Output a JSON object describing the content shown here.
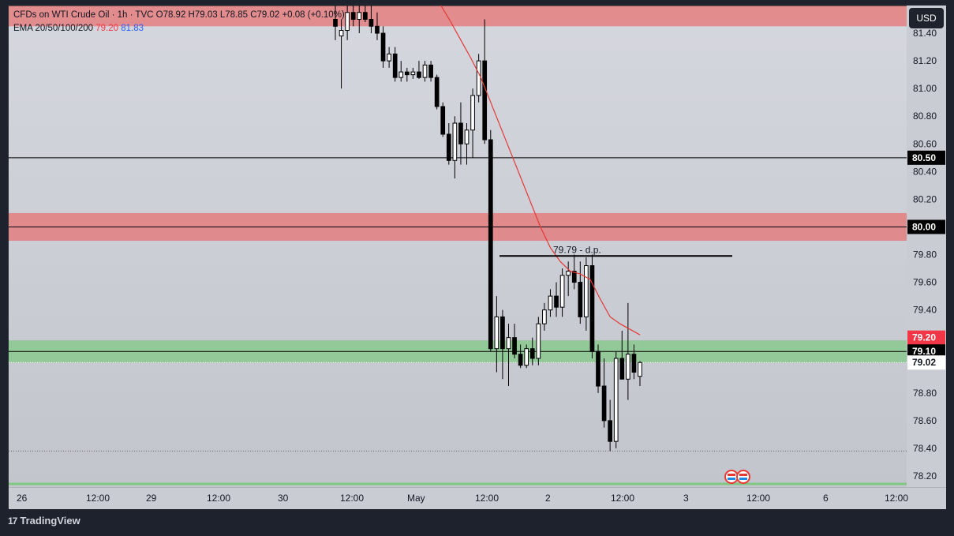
{
  "legend": {
    "symbol_line": "CFDs on WTI Crude Oil · 1h · TVC  O78.92  H79.03  L78.85  C79.02  +0.08 (+0.10%)",
    "ema_label": "EMA 20/50/100/200",
    "ema_value_1": "79.20",
    "ema_value_2": "81.83"
  },
  "currency": "USD",
  "branding": "TradingView",
  "colors": {
    "red_zone": "#e57373",
    "green_zone": "#81c784",
    "ema_line": "#e53935",
    "price_badge": "#ffffff",
    "ema_badge": "#f23645"
  },
  "chart_data": {
    "type": "candlestick",
    "ylim": [
      78.12,
      81.6
    ],
    "y_ticks": [
      "81.40",
      "81.20",
      "81.00",
      "80.80",
      "80.60",
      "80.40",
      "80.20",
      "79.80",
      "79.60",
      "79.40",
      "78.80",
      "78.60",
      "78.40",
      "78.20"
    ],
    "x_ticks": [
      "26",
      "12:00",
      "29",
      "12:00",
      "30",
      "12:00",
      "May",
      "12:00",
      "2",
      "12:00",
      "3",
      "12:00",
      "6",
      "12:00"
    ],
    "zones": [
      {
        "type": "resistance",
        "low": 81.45,
        "high": 81.6
      },
      {
        "type": "resistance",
        "low": 79.9,
        "high": 80.1
      },
      {
        "type": "support",
        "low": 79.02,
        "high": 79.18
      }
    ],
    "levels": [
      81.6,
      80.5,
      80.0,
      79.1
    ],
    "annotation": {
      "text": "79.79 - d.p.",
      "value": 79.79
    },
    "price_badges": [
      {
        "value": "80.50",
        "style": "level"
      },
      {
        "value": "80.00",
        "style": "level"
      },
      {
        "value": "79.20",
        "style": "ema"
      },
      {
        "value": "79.10",
        "style": "level"
      },
      {
        "value": "79.02",
        "style": "last"
      }
    ],
    "candles": [
      {
        "o": 81.5,
        "h": 81.6,
        "l": 81.35,
        "c": 81.45
      },
      {
        "o": 81.38,
        "h": 81.5,
        "l": 81.0,
        "c": 81.42
      },
      {
        "o": 81.42,
        "h": 81.6,
        "l": 81.35,
        "c": 81.55
      },
      {
        "o": 81.55,
        "h": 81.6,
        "l": 81.45,
        "c": 81.5
      },
      {
        "o": 81.5,
        "h": 81.6,
        "l": 81.4,
        "c": 81.55
      },
      {
        "o": 81.55,
        "h": 81.6,
        "l": 81.48,
        "c": 81.5
      },
      {
        "o": 81.5,
        "h": 81.6,
        "l": 81.4,
        "c": 81.45
      },
      {
        "o": 81.45,
        "h": 81.55,
        "l": 81.35,
        "c": 81.4
      },
      {
        "o": 81.4,
        "h": 81.45,
        "l": 81.15,
        "c": 81.2
      },
      {
        "o": 81.2,
        "h": 81.3,
        "l": 81.15,
        "c": 81.25
      },
      {
        "o": 81.25,
        "h": 81.3,
        "l": 81.05,
        "c": 81.08
      },
      {
        "o": 81.08,
        "h": 81.2,
        "l": 81.05,
        "c": 81.12
      },
      {
        "o": 81.12,
        "h": 81.15,
        "l": 81.05,
        "c": 81.1
      },
      {
        "o": 81.1,
        "h": 81.15,
        "l": 81.07,
        "c": 81.12
      },
      {
        "o": 81.12,
        "h": 81.2,
        "l": 81.07,
        "c": 81.08
      },
      {
        "o": 81.08,
        "h": 81.2,
        "l": 81.05,
        "c": 81.17
      },
      {
        "o": 81.17,
        "h": 81.2,
        "l": 81.05,
        "c": 81.08
      },
      {
        "o": 81.08,
        "h": 81.1,
        "l": 80.85,
        "c": 80.87
      },
      {
        "o": 80.87,
        "h": 80.9,
        "l": 80.65,
        "c": 80.67
      },
      {
        "o": 80.67,
        "h": 80.75,
        "l": 80.45,
        "c": 80.48
      },
      {
        "o": 80.48,
        "h": 80.8,
        "l": 80.35,
        "c": 80.75
      },
      {
        "o": 80.75,
        "h": 80.9,
        "l": 80.45,
        "c": 80.6
      },
      {
        "o": 80.6,
        "h": 80.75,
        "l": 80.45,
        "c": 80.7
      },
      {
        "o": 80.7,
        "h": 81.0,
        "l": 80.5,
        "c": 80.95
      },
      {
        "o": 80.95,
        "h": 81.25,
        "l": 80.9,
        "c": 81.2
      },
      {
        "o": 81.2,
        "h": 81.5,
        "l": 80.6,
        "c": 80.63
      },
      {
        "o": 80.63,
        "h": 80.7,
        "l": 79.1,
        "c": 79.12
      },
      {
        "o": 79.12,
        "h": 79.5,
        "l": 78.95,
        "c": 79.35
      },
      {
        "o": 79.35,
        "h": 79.4,
        "l": 78.9,
        "c": 79.12
      },
      {
        "o": 79.12,
        "h": 79.3,
        "l": 78.85,
        "c": 79.2
      },
      {
        "o": 79.2,
        "h": 79.3,
        "l": 79.05,
        "c": 79.08
      },
      {
        "o": 79.08,
        "h": 79.15,
        "l": 78.98,
        "c": 79.0
      },
      {
        "o": 79.0,
        "h": 79.15,
        "l": 78.98,
        "c": 79.12
      },
      {
        "o": 79.12,
        "h": 79.2,
        "l": 79.0,
        "c": 79.05
      },
      {
        "o": 79.05,
        "h": 79.35,
        "l": 79.0,
        "c": 79.3
      },
      {
        "o": 79.3,
        "h": 79.45,
        "l": 79.25,
        "c": 79.4
      },
      {
        "o": 79.4,
        "h": 79.55,
        "l": 79.35,
        "c": 79.5
      },
      {
        "o": 79.5,
        "h": 79.6,
        "l": 79.35,
        "c": 79.42
      },
      {
        "o": 79.42,
        "h": 79.7,
        "l": 79.35,
        "c": 79.65
      },
      {
        "o": 79.65,
        "h": 79.75,
        "l": 79.5,
        "c": 79.68
      },
      {
        "o": 79.68,
        "h": 79.8,
        "l": 79.55,
        "c": 79.6
      },
      {
        "o": 79.6,
        "h": 79.75,
        "l": 79.3,
        "c": 79.35
      },
      {
        "o": 79.35,
        "h": 79.78,
        "l": 79.25,
        "c": 79.72
      },
      {
        "o": 79.72,
        "h": 79.8,
        "l": 79.05,
        "c": 79.1
      },
      {
        "o": 79.1,
        "h": 79.15,
        "l": 78.8,
        "c": 78.85
      },
      {
        "o": 78.85,
        "h": 79.05,
        "l": 78.55,
        "c": 78.6
      },
      {
        "o": 78.6,
        "h": 78.75,
        "l": 78.38,
        "c": 78.45
      },
      {
        "o": 78.45,
        "h": 79.1,
        "l": 78.4,
        "c": 79.05
      },
      {
        "o": 79.05,
        "h": 79.25,
        "l": 78.9,
        "c": 78.9
      },
      {
        "o": 78.9,
        "h": 79.45,
        "l": 78.75,
        "c": 79.08
      },
      {
        "o": 79.08,
        "h": 79.15,
        "l": 78.9,
        "c": 78.95
      },
      {
        "o": 78.92,
        "h": 79.03,
        "l": 78.85,
        "c": 79.02
      }
    ],
    "ema": [
      81.88,
      81.8,
      81.7,
      81.6,
      81.48,
      81.35,
      81.22,
      81.08,
      80.9,
      80.72,
      80.54,
      80.36,
      80.18,
      80.0,
      79.85,
      79.75,
      79.68,
      79.66,
      79.62,
      79.48,
      79.35,
      79.3,
      79.26,
      79.22
    ]
  }
}
